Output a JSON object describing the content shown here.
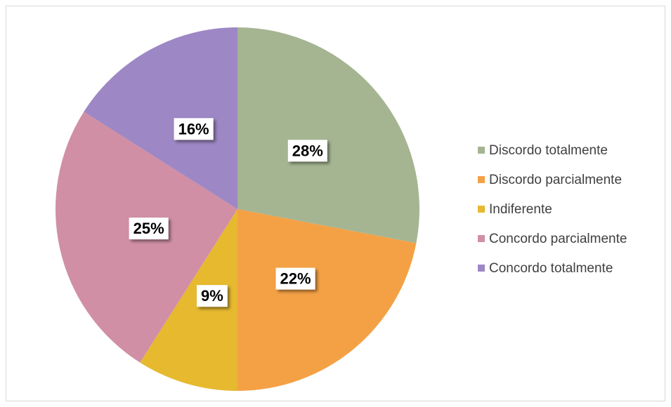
{
  "chart_data": {
    "type": "pie",
    "categories": [
      "Discordo totalmente",
      "Discordo parcialmente",
      "Indiferente",
      "Concordo parcialmente",
      "Concordo totalmente"
    ],
    "values": [
      28,
      22,
      9,
      25,
      16
    ],
    "value_labels": [
      "28%",
      "22%",
      "9%",
      "25%",
      "16%"
    ],
    "colors": [
      "#a5b592",
      "#f4a145",
      "#e6b92f",
      "#d08fa5",
      "#9d87c4"
    ],
    "legend": "right"
  }
}
